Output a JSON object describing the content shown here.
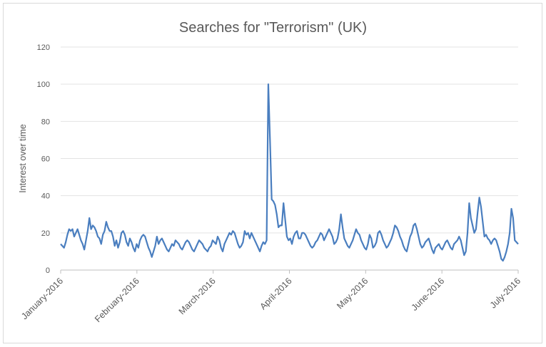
{
  "chart_data": {
    "type": "line",
    "title": "Searches for \"Terrorism\" (UK)",
    "xlabel": "",
    "ylabel": "Interest over time",
    "ylim": [
      0,
      120
    ],
    "yticks": [
      0,
      20,
      40,
      60,
      80,
      100,
      120
    ],
    "x_tick_labels": [
      "January-2016",
      "February-2016",
      "March-2016",
      "April-2016",
      "May-2016",
      "June-2016",
      "July-2016"
    ],
    "grid": true,
    "color": "#4a7ebf",
    "series": [
      {
        "values": [
          14,
          13,
          12,
          15,
          19,
          22,
          21,
          22,
          18,
          20,
          22,
          19,
          16,
          14,
          11,
          16,
          21,
          28,
          22,
          24,
          23,
          21,
          18,
          17,
          14,
          19,
          21,
          26,
          23,
          21,
          21,
          18,
          13,
          16,
          12,
          15,
          20,
          21,
          19,
          15,
          13,
          17,
          15,
          12,
          10,
          14,
          12,
          16,
          18,
          19,
          18,
          15,
          12,
          10,
          7,
          10,
          13,
          18,
          14,
          16,
          17,
          15,
          13,
          11,
          10,
          12,
          14,
          13,
          16,
          15,
          14,
          12,
          11,
          13,
          15,
          16,
          15,
          13,
          11,
          10,
          12,
          14,
          16,
          15,
          14,
          12,
          11,
          10,
          12,
          13,
          16,
          15,
          14,
          18,
          16,
          12,
          10,
          14,
          16,
          18,
          20,
          19,
          21,
          20,
          17,
          14,
          12,
          13,
          15,
          21,
          19,
          20,
          17,
          20,
          18,
          16,
          14,
          12,
          10,
          13,
          15,
          14,
          16,
          100,
          70,
          38,
          37,
          35,
          30,
          23,
          24,
          24,
          36,
          27,
          18,
          16,
          17,
          14,
          18,
          20,
          21,
          17,
          17,
          20,
          20,
          19,
          17,
          15,
          13,
          12,
          13,
          15,
          16,
          18,
          20,
          19,
          16,
          18,
          20,
          22,
          20,
          18,
          14,
          15,
          17,
          22,
          30,
          23,
          17,
          15,
          13,
          12,
          14,
          16,
          19,
          22,
          20,
          19,
          16,
          14,
          12,
          11,
          14,
          19,
          17,
          12,
          13,
          15,
          20,
          21,
          19,
          16,
          14,
          12,
          13,
          15,
          17,
          20,
          24,
          23,
          21,
          18,
          16,
          13,
          11,
          10,
          14,
          18,
          20,
          24,
          25,
          22,
          18,
          14,
          12,
          13,
          15,
          16,
          17,
          14,
          11,
          9,
          12,
          13,
          14,
          12,
          11,
          13,
          15,
          16,
          14,
          12,
          11,
          14,
          15,
          16,
          18,
          16,
          12,
          8,
          10,
          20,
          36,
          28,
          24,
          20,
          22,
          31,
          39,
          34,
          26,
          18,
          19,
          17,
          16,
          14,
          16,
          17,
          16,
          13,
          10,
          6,
          5,
          7,
          10,
          14,
          20,
          33,
          28,
          16,
          15,
          14
        ]
      }
    ]
  }
}
